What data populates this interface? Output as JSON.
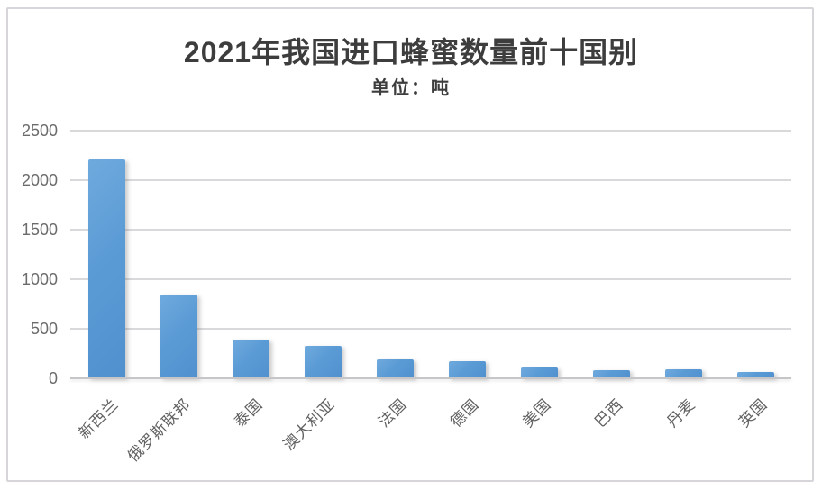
{
  "page": {
    "background_color": "#ffffff",
    "frame_border_color": "#d7d4da"
  },
  "chart_data": {
    "type": "bar",
    "title": "2021年我国进口蜂蜜数量前十国别",
    "subtitle": "单位：吨",
    "categories": [
      "新西兰",
      "俄罗斯联邦",
      "泰国",
      "澳大利亚",
      "法国",
      "德国",
      "美国",
      "巴西",
      "丹麦",
      "英国"
    ],
    "values": [
      2210,
      850,
      395,
      330,
      190,
      175,
      110,
      85,
      90,
      65
    ],
    "xlabel": "",
    "ylabel": "",
    "ylim": [
      0,
      2500
    ],
    "yticks": [
      0,
      500,
      1000,
      1500,
      2000,
      2500
    ],
    "grid": "horizontal",
    "legend": "none",
    "bar_color": "#5b9bd5",
    "gridline_color": "#d9d8da",
    "axis_line_color": "#c6c5c8",
    "title_color": "#3d3d3d",
    "tick_label_color": "#6b6b6b",
    "category_label_rotation_deg": -45
  }
}
